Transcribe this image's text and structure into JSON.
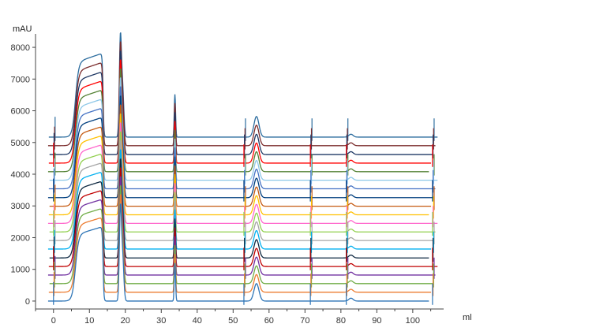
{
  "chart_data": {
    "type": "line",
    "title": "",
    "xlabel": "ml",
    "ylabel": "mAU",
    "xlim": [
      -5,
      107.5
    ],
    "ylim": [
      -250,
      8300
    ],
    "x_ticks": [
      0,
      10,
      20,
      30,
      40,
      50,
      60,
      70,
      80,
      90,
      100
    ],
    "x_tick_labels": [
      "0",
      "10",
      "20",
      "30",
      "40",
      "50",
      "60",
      "70",
      "80",
      "90",
      "100"
    ],
    "y_ticks": [
      0,
      1000,
      2000,
      3000,
      4000,
      5000,
      6000,
      7000,
      8000
    ],
    "y_tick_labels": [
      "0",
      "1000",
      "2000",
      "3000",
      "4000",
      "5000",
      "6000",
      "7000",
      "8000"
    ],
    "grid": false,
    "legend": "none",
    "series_style": "stacked chromatogram overlays, each trace offset vertically",
    "trace_count": 20,
    "trace_baselines": [
      0,
      280,
      550,
      820,
      1090,
      1360,
      1640,
      1910,
      2180,
      2450,
      2720,
      2990,
      3260,
      3540,
      3810,
      4080,
      4350,
      4620,
      4900,
      5170
    ],
    "trace_colors": [
      "#2e75b6",
      "#ed7d31",
      "#70ad47",
      "#7030a0",
      "#c00000",
      "#0e2841",
      "#00b0f0",
      "#a5a5a5",
      "#92d050",
      "#ff66cc",
      "#ffc000",
      "#c55a11",
      "#003f7f",
      "#4472c4",
      "#8ec8e8",
      "#548235",
      "#ff0000",
      "#1f3864",
      "#7b2c2c",
      "#2b6c9e"
    ],
    "features": {
      "loading_plateau": {
        "x_rise": 5.5,
        "x_top": 7.5,
        "x_fall": 13.8,
        "height_base": 2350,
        "height_top": 2650
      },
      "peak_1": {
        "x": 18.6,
        "height_base": 2700,
        "height_top": 2900
      },
      "peak_2": {
        "x": 33.8,
        "height_base": 1200,
        "height_top": 1350
      },
      "peak_3": {
        "x": 56.5,
        "height_base": 550,
        "height_top": 650
      },
      "spikes_x": [
        0,
        53,
        71.5,
        81.5,
        105.5
      ]
    }
  }
}
